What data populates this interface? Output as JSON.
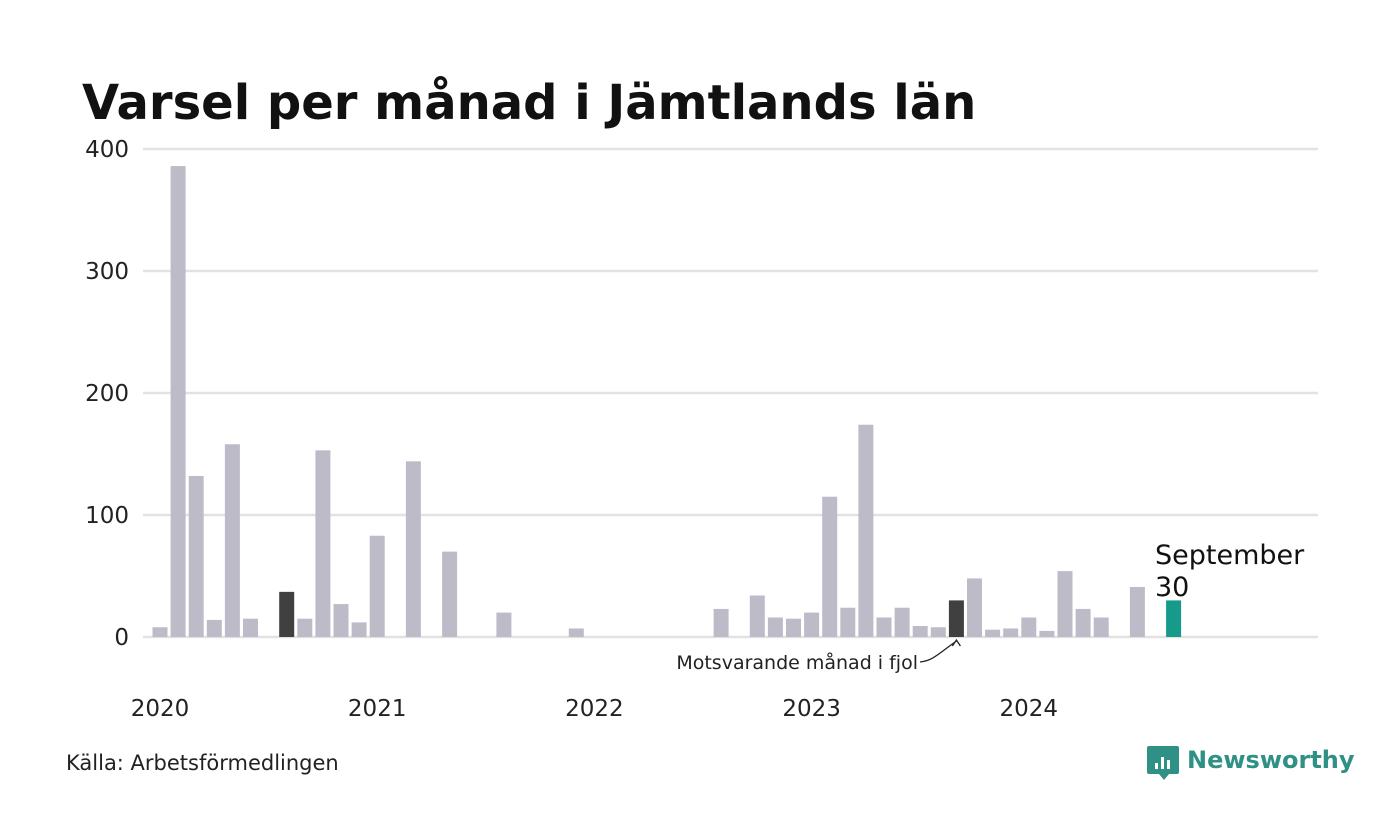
{
  "chart_data": {
    "type": "bar",
    "title": "Varsel per månad i Jämtlands län",
    "source": "Källa: Arbetsförmedlingen",
    "brand": "Newsworthy",
    "ylim": [
      0,
      400
    ],
    "yticks": [
      0,
      100,
      200,
      300,
      400
    ],
    "grid": true,
    "x_start": "2020-01",
    "xticks": [
      {
        "label": "2020",
        "month": "2020-01"
      },
      {
        "label": "2021",
        "month": "2021-01"
      },
      {
        "label": "2022",
        "month": "2022-01"
      },
      {
        "label": "2023",
        "month": "2023-01"
      },
      {
        "label": "2024",
        "month": "2024-01"
      }
    ],
    "categories": [
      "2020-01",
      "2020-02",
      "2020-03",
      "2020-04",
      "2020-05",
      "2020-06",
      "2020-07",
      "2020-08",
      "2020-09",
      "2020-10",
      "2020-11",
      "2020-12",
      "2021-01",
      "2021-02",
      "2021-03",
      "2021-04",
      "2021-05",
      "2021-06",
      "2021-07",
      "2021-08",
      "2021-09",
      "2021-10",
      "2021-11",
      "2021-12",
      "2022-01",
      "2022-02",
      "2022-03",
      "2022-04",
      "2022-05",
      "2022-06",
      "2022-07",
      "2022-08",
      "2022-09",
      "2022-10",
      "2022-11",
      "2022-12",
      "2023-01",
      "2023-02",
      "2023-03",
      "2023-04",
      "2023-05",
      "2023-06",
      "2023-07",
      "2023-08",
      "2023-09",
      "2023-10",
      "2023-11",
      "2023-12",
      "2024-01",
      "2024-02",
      "2024-03",
      "2024-04",
      "2024-05",
      "2024-06",
      "2024-07",
      "2024-08",
      "2024-09"
    ],
    "values": [
      8,
      386,
      132,
      14,
      158,
      15,
      0,
      37,
      15,
      153,
      27,
      12,
      83,
      0,
      144,
      0,
      70,
      0,
      0,
      20,
      0,
      0,
      0,
      7,
      0,
      0,
      0,
      0,
      0,
      0,
      0,
      23,
      0,
      34,
      16,
      15,
      20,
      115,
      24,
      174,
      16,
      24,
      9,
      8,
      30,
      48,
      6,
      7,
      16,
      5,
      54,
      23,
      16,
      0,
      41,
      0,
      30
    ],
    "highlight_previous_year": [
      "2020-08",
      "2021-09",
      "2023-09"
    ],
    "current": {
      "month": "2024-09",
      "label": "September",
      "value": "30"
    },
    "annotation": "Motsvarande månad i fjol",
    "colors": {
      "default": "#bebbc9",
      "previous_year": "#404040",
      "current": "#169b8b",
      "grid": "#e2e2e2"
    }
  }
}
